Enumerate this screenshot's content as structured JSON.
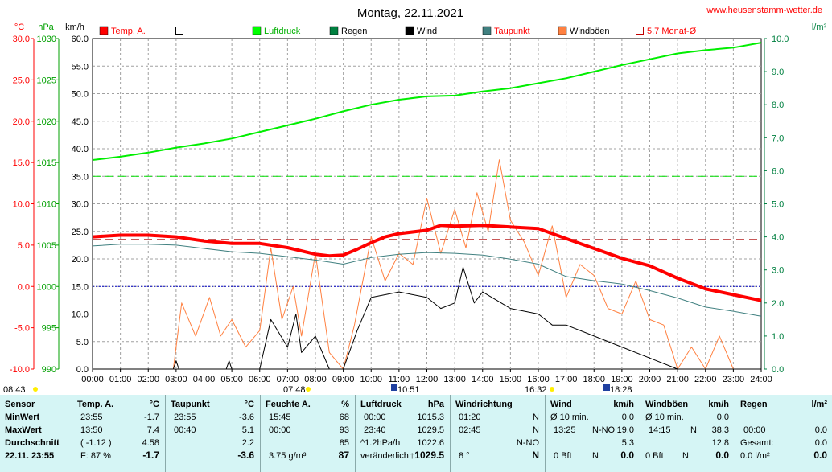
{
  "header": {
    "title": "Montag, 22.11.2021",
    "website": "www.heusenstamm-wetter.de"
  },
  "units": {
    "temp": "°C",
    "pressure": "hPa",
    "speed": "km/h",
    "rain": "l/m²"
  },
  "legend": [
    {
      "label": "Temp. A.",
      "color": "#ff0000",
      "style": "filled"
    },
    {
      "label": "",
      "color": "#000000",
      "style": "empty"
    },
    {
      "label": "Luftdruck",
      "color": "#00ff00",
      "style": "filled"
    },
    {
      "label": "Regen",
      "color": "#008040",
      "style": "filled"
    },
    {
      "label": "Wind",
      "color": "#000000",
      "style": "filled"
    },
    {
      "label": "Taupunkt",
      "color": "#408080",
      "style": "filled"
    },
    {
      "label": "Windböen",
      "color": "#ff8040",
      "style": "filled"
    },
    {
      "label": "5.7 Monat-Ø",
      "color": "#c00000",
      "style": "empty"
    }
  ],
  "colors": {
    "temp": "#ff0000",
    "pressure": "#00ee00",
    "wind": "#000000",
    "dew": "#408080",
    "gust": "#ff8040",
    "rain": "#008040",
    "zero_line": "#0000c0",
    "avg_line": "#c04040",
    "left_temp_axis": "#ff0000",
    "left_hpa_axis": "#00a000",
    "right_axis": "#008040"
  },
  "events": {
    "sunrise": "07:48",
    "sunset": "16:32",
    "markers": [
      "08:43",
      "10:51",
      "18:28"
    ]
  },
  "chart_data": {
    "type": "line",
    "title": "Montag, 22.11.2021",
    "x_ticks": [
      "00:00",
      "01:00",
      "02:00",
      "03:00",
      "04:00",
      "05:00",
      "06:00",
      "07:00",
      "08:00",
      "09:00",
      "10:00",
      "11:00",
      "12:00",
      "13:00",
      "14:00",
      "15:00",
      "16:00",
      "17:00",
      "18:00",
      "19:00",
      "20:00",
      "21:00",
      "22:00",
      "23:00",
      "24:00"
    ],
    "axes": {
      "temp": {
        "label": "°C",
        "ticks": [
          "30.0",
          "25.0",
          "20.0",
          "15.0",
          "10.0",
          "5.0",
          "0.0",
          "-5.0",
          "-10.0"
        ],
        "range": [
          -10,
          30
        ]
      },
      "pressure": {
        "label": "hPa",
        "ticks": [
          "1030",
          "1025",
          "1020",
          "1015",
          "1010",
          "1005",
          "1000",
          "995",
          "990"
        ],
        "range": [
          990,
          1030
        ]
      },
      "speed": {
        "label": "km/h",
        "ticks": [
          "60.0",
          "55.0",
          "50.0",
          "45.0",
          "40.0",
          "35.0",
          "30.0",
          "25.0",
          "20.0",
          "15.0",
          "10.0",
          "5.0",
          "0.0"
        ],
        "range": [
          0,
          60
        ]
      },
      "rain": {
        "label": "l/m²",
        "ticks": [
          "10.0",
          "9.0",
          "8.0",
          "7.0",
          "6.0",
          "5.0",
          "4.0",
          "3.0",
          "2.0",
          "1.0",
          "0.0"
        ],
        "range": [
          0,
          10
        ]
      }
    },
    "reference_lines": {
      "pressure_dashed_kmh": 35.0,
      "month_avg_temp": 5.7,
      "zero_temp": 0.0
    },
    "series": [
      {
        "name": "Temp. A.",
        "axis": "temp",
        "x": [
          0,
          1,
          2,
          3,
          4,
          5,
          6,
          7,
          8,
          8.5,
          9,
          9.5,
          10,
          10.5,
          11,
          12,
          12.5,
          13,
          14,
          15,
          16,
          17,
          18,
          19,
          20,
          21,
          22,
          23,
          24
        ],
        "values": [
          6.0,
          6.2,
          6.2,
          6.0,
          5.5,
          5.2,
          5.2,
          4.7,
          3.9,
          3.7,
          3.8,
          4.5,
          5.3,
          6.0,
          6.4,
          6.8,
          7.4,
          7.3,
          7.4,
          7.2,
          7.0,
          5.8,
          4.6,
          3.4,
          2.5,
          1.0,
          -0.3,
          -1.0,
          -1.7
        ]
      },
      {
        "name": "Taupunkt",
        "axis": "temp",
        "x": [
          0,
          1,
          2,
          3,
          4,
          5,
          6,
          7,
          8,
          9,
          10,
          11,
          12,
          13,
          14,
          15,
          16,
          17,
          18,
          19,
          20,
          21,
          22,
          23,
          24
        ],
        "values": [
          4.9,
          5.1,
          5.1,
          5.0,
          4.6,
          4.2,
          4.0,
          3.6,
          3.2,
          2.7,
          3.5,
          3.9,
          4.1,
          4.0,
          3.8,
          3.3,
          2.7,
          1.2,
          0.7,
          0.3,
          -0.5,
          -1.4,
          -2.5,
          -3.0,
          -3.6
        ]
      },
      {
        "name": "Luftdruck",
        "axis": "pressure",
        "x": [
          0,
          1,
          2,
          3,
          4,
          5,
          6,
          7,
          8,
          9,
          10,
          11,
          12,
          13,
          14,
          15,
          16,
          17,
          18,
          19,
          20,
          21,
          22,
          23,
          24
        ],
        "values": [
          1015.3,
          1015.7,
          1016.2,
          1016.8,
          1017.3,
          1017.9,
          1018.7,
          1019.5,
          1020.3,
          1021.2,
          1022.0,
          1022.6,
          1023.0,
          1023.1,
          1023.6,
          1024.0,
          1024.6,
          1025.2,
          1026.0,
          1026.8,
          1027.5,
          1028.2,
          1028.6,
          1028.9,
          1029.5
        ]
      },
      {
        "name": "Wind",
        "axis": "speed",
        "x": [
          0,
          2.9,
          3.0,
          3.1,
          4.8,
          4.9,
          5.0,
          6.0,
          6.4,
          7.0,
          7.3,
          7.5,
          8.0,
          8.5,
          9.0,
          9.5,
          10.0,
          11.0,
          12.0,
          12.5,
          13.0,
          13.3,
          13.7,
          14.0,
          15.0,
          16.0,
          16.5,
          17.0,
          18.0,
          19.0,
          20.0,
          21.0,
          22.0,
          24.0
        ],
        "values": [
          0,
          0,
          1.5,
          0,
          0,
          1.5,
          0,
          0,
          9,
          4,
          10,
          3,
          6,
          0,
          0,
          7,
          13,
          14,
          13,
          11,
          12,
          18.5,
          12,
          14,
          11,
          10,
          8,
          8,
          6,
          4,
          2,
          0,
          0,
          0
        ]
      },
      {
        "name": "Windböen",
        "axis": "speed",
        "x": [
          0,
          2.9,
          3.2,
          3.7,
          4.2,
          4.6,
          5.0,
          5.5,
          6.0,
          6.4,
          6.8,
          7.2,
          7.5,
          8.0,
          8.5,
          9.0,
          9.4,
          10.0,
          10.5,
          11.0,
          11.5,
          12.0,
          12.5,
          13.0,
          13.4,
          13.8,
          14.2,
          14.6,
          15.0,
          15.5,
          16.0,
          16.5,
          17.0,
          17.5,
          18.0,
          18.5,
          19.0,
          19.5,
          20.0,
          20.5,
          21.0,
          21.5,
          22.0,
          22.5,
          23.0,
          23.5,
          24.0
        ],
        "values": [
          0,
          0,
          12,
          6,
          13,
          6,
          9,
          4,
          7,
          22,
          9,
          15,
          6,
          21,
          3,
          0,
          8,
          24,
          16,
          21,
          19,
          31,
          21,
          29,
          22,
          32,
          25,
          38,
          27,
          23,
          17,
          26,
          13,
          19,
          17,
          11,
          10,
          16,
          9,
          8,
          0,
          4,
          0,
          6,
          0,
          0,
          0
        ]
      }
    ]
  },
  "stats": {
    "sensor": {
      "header": "Sensor",
      "rows": [
        "MinWert",
        "MaxWert",
        "Durchschnitt",
        "22.11. 23:55"
      ]
    },
    "temp": {
      "header": "Temp. A.",
      "unit": "°C",
      "rows": [
        [
          "23:55",
          "-1.7"
        ],
        [
          "13:50",
          "7.4"
        ],
        [
          "( -1.12 )",
          "4.58"
        ],
        [
          "F: 87 %",
          "-1.7"
        ]
      ]
    },
    "dew": {
      "header": "Taupunkt",
      "unit": "°C",
      "rows": [
        [
          "23:55",
          "-3.6"
        ],
        [
          "00:40",
          "5.1"
        ],
        [
          "",
          "2.2"
        ],
        [
          "",
          "-3.6"
        ]
      ]
    },
    "humidity": {
      "header": "Feuchte A.",
      "unit": "%",
      "rows": [
        [
          "15:45",
          "68"
        ],
        [
          "00:00",
          "93"
        ],
        [
          "",
          "85"
        ],
        [
          "3.75 g/m³",
          "87"
        ]
      ]
    },
    "pressure": {
      "header": "Luftdruck",
      "unit": "hPa",
      "rows": [
        [
          "00:00",
          "1015.3"
        ],
        [
          "23:40",
          "1029.5"
        ],
        [
          "^1.2hPa/h",
          "1022.6"
        ],
        [
          "veränderlich",
          "↑1029.5"
        ]
      ]
    },
    "wind_dir": {
      "header": "Windrichtung",
      "rows": [
        [
          "01:20",
          "N"
        ],
        [
          "02:45",
          "N"
        ],
        [
          "",
          "N-NO"
        ],
        [
          "8 °",
          "N"
        ]
      ]
    },
    "wind": {
      "header": "Wind",
      "unit": "km/h",
      "rows": [
        [
          "Ø 10 min.",
          "",
          "0.0"
        ],
        [
          "13:25",
          "N-NO",
          "19.0"
        ],
        [
          "",
          "",
          "5.3"
        ],
        [
          "0 Bft",
          "N",
          "0.0"
        ]
      ]
    },
    "gusts": {
      "header": "Windböen",
      "unit": "km/h",
      "rows": [
        [
          "Ø 10 min.",
          "",
          "0.0"
        ],
        [
          "14:15",
          "N",
          "38.3"
        ],
        [
          "",
          "",
          "12.8"
        ],
        [
          "0 Bft",
          "N",
          "0.0"
        ]
      ]
    },
    "rain": {
      "header": "Regen",
      "unit": "l/m²",
      "rows": [
        [
          "",
          "",
          ""
        ],
        [
          "00:00",
          "",
          "0.0"
        ],
        [
          "Gesamt:",
          "",
          "0.0"
        ],
        [
          "0.0 l/m²",
          "",
          "0.0"
        ]
      ]
    }
  }
}
